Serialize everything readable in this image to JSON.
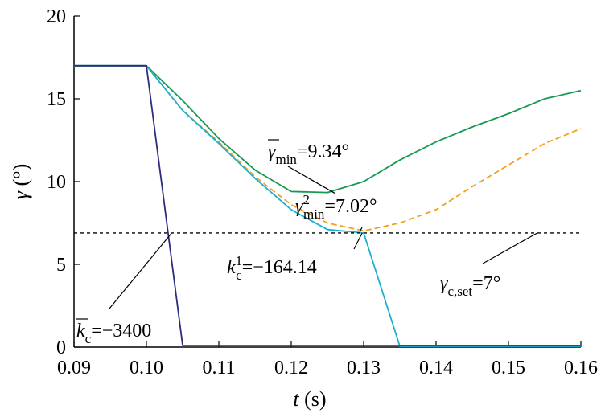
{
  "chart_data": {
    "type": "line",
    "title": "",
    "xlabel": "t (s)",
    "ylabel": "γ (°)",
    "xlim": [
      0.09,
      0.16
    ],
    "ylim": [
      0,
      20
    ],
    "x_ticks": [
      "0.09",
      "0.10",
      "0.11",
      "0.12",
      "0.13",
      "0.14",
      "0.15",
      "0.16"
    ],
    "y_ticks": [
      "0",
      "5",
      "10",
      "15",
      "20"
    ],
    "grid": false,
    "series": [
      {
        "color": "#1a9850",
        "style": "solid",
        "x": [
          0.09,
          0.1,
          0.105,
          0.11,
          0.115,
          0.12,
          0.125,
          0.13,
          0.135,
          0.14,
          0.145,
          0.15,
          0.155,
          0.16
        ],
        "y": [
          17.0,
          17.0,
          14.9,
          12.6,
          10.7,
          9.4,
          9.34,
          10.0,
          11.3,
          12.4,
          13.3,
          14.1,
          15.0,
          15.5
        ]
      },
      {
        "color": "#f4a020",
        "style": "dashed",
        "x": [
          0.09,
          0.1,
          0.105,
          0.11,
          0.115,
          0.12,
          0.125,
          0.13,
          0.135,
          0.14,
          0.145,
          0.15,
          0.155,
          0.16
        ],
        "y": [
          17.0,
          17.0,
          14.3,
          12.4,
          10.3,
          8.6,
          7.5,
          7.02,
          7.5,
          8.3,
          9.7,
          11.0,
          12.3,
          13.2
        ]
      },
      {
        "color": "#1ab0d0",
        "style": "solid",
        "x": [
          0.09,
          0.1,
          0.105,
          0.11,
          0.115,
          0.12,
          0.125,
          0.13,
          0.135,
          0.16
        ],
        "y": [
          17.0,
          17.0,
          14.3,
          12.3,
          10.2,
          8.3,
          7.1,
          6.9,
          0.05,
          0.05
        ]
      },
      {
        "color": "#2c2c80",
        "style": "solid",
        "x": [
          0.09,
          0.1,
          0.105,
          0.16
        ],
        "y": [
          17.0,
          17.0,
          0.1,
          0.1
        ]
      },
      {
        "color": "#000000",
        "style": "dotted",
        "x": [
          0.09,
          0.16
        ],
        "y": [
          6.9,
          6.9
        ]
      }
    ],
    "annotations": [
      {
        "sym": "γ",
        "sub": "min",
        "sup": "",
        "value": "=9.34°",
        "anchor_x": 0.126,
        "anchor_y": 9.3
      },
      {
        "sym": "γ",
        "sub": "min",
        "sup": "2",
        "value": "=7.02°",
        "anchor_x": 0.1295,
        "anchor_y": 7.0
      },
      {
        "sym": "k",
        "sub": "c",
        "sup": "1",
        "value": "=−164.14",
        "anchor_x": 0.1298,
        "anchor_y": 6.9
      },
      {
        "sym": "γ",
        "sub": "c,set",
        "sup": "",
        "value": "=7°",
        "anchor_x": 0.154,
        "anchor_y": 6.9
      },
      {
        "sym": "k",
        "sub": "c",
        "sup": "",
        "value": "=−3400",
        "anchor_x": 0.1035,
        "anchor_y": 6.9
      }
    ]
  }
}
